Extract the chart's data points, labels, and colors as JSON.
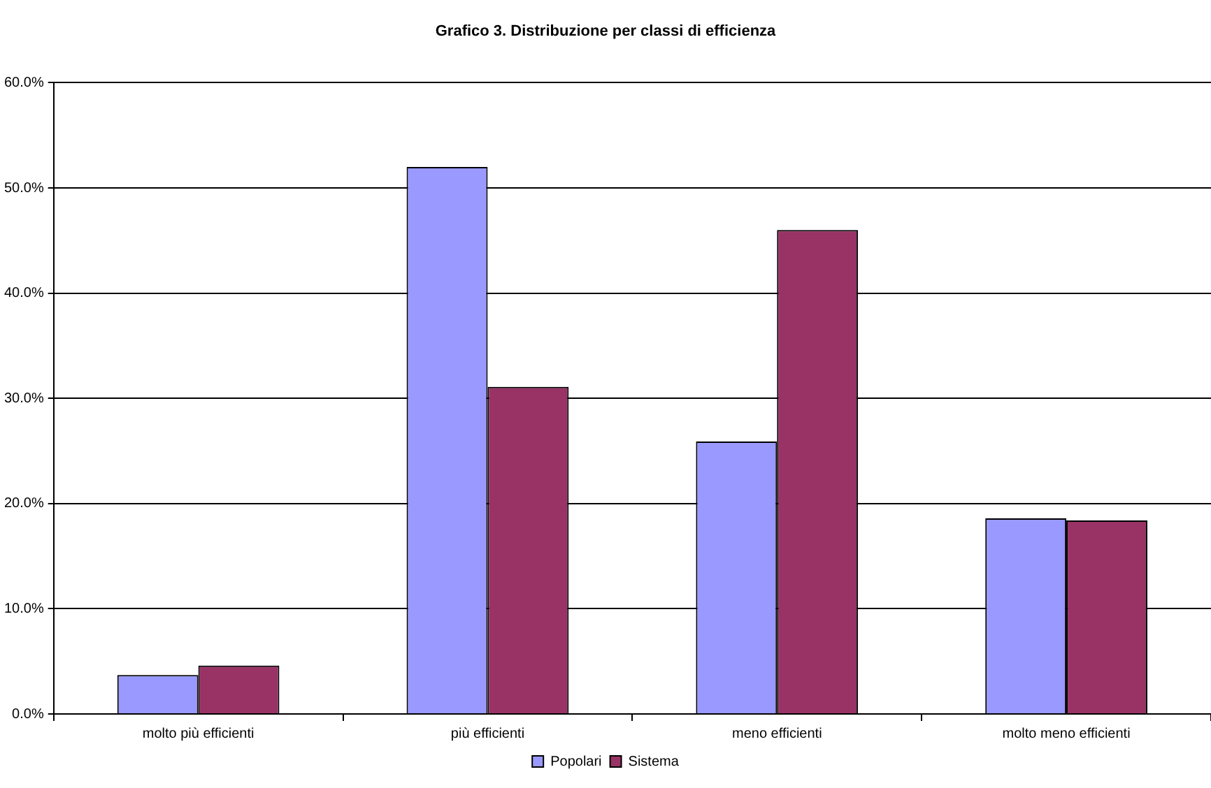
{
  "chart_data": {
    "type": "bar",
    "title": "Grafico 3. Distribuzione per classi di efficienza",
    "categories": [
      "molto più efficienti",
      "più efficienti",
      "meno efficienti",
      "molto meno efficienti"
    ],
    "series": [
      {
        "name": "Popolari",
        "color": "#9999ff",
        "values": [
          3.7,
          52.0,
          25.9,
          18.6
        ]
      },
      {
        "name": "Sistema",
        "color": "#993366",
        "values": [
          4.6,
          31.1,
          46.0,
          18.4
        ]
      }
    ],
    "ylim": [
      0,
      60
    ],
    "yticks": [
      {
        "value": 0,
        "label": "0.0%"
      },
      {
        "value": 10,
        "label": "10.0%"
      },
      {
        "value": 20,
        "label": "20.0%"
      },
      {
        "value": 30,
        "label": "30.0%"
      },
      {
        "value": 40,
        "label": "40.0%"
      },
      {
        "value": 50,
        "label": "50.0%"
      },
      {
        "value": 60,
        "label": "60.0%"
      }
    ],
    "grid": "y",
    "legend": "bottom"
  }
}
